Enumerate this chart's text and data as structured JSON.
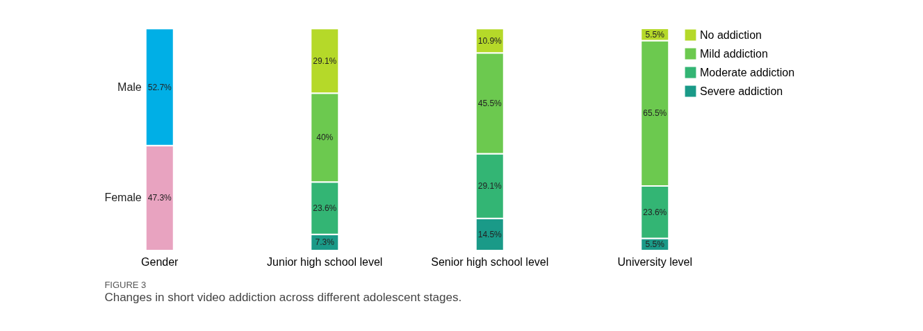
{
  "chart_data": {
    "type": "other",
    "categories": [
      "Gender",
      "Junior high school level",
      "Senior high school level",
      "University level"
    ],
    "series": [
      {
        "name": "Female",
        "color": "#e8a3c0",
        "values": [
          47.3,
          null,
          null,
          null
        ],
        "value_labels": [
          "47.3%",
          null,
          null,
          null
        ]
      },
      {
        "name": "Male",
        "color": "#00afe6",
        "values": [
          52.7,
          null,
          null,
          null
        ],
        "value_labels": [
          "52.7%",
          null,
          null,
          null
        ]
      },
      {
        "name": "Severe addiction",
        "color": "#1a9a88",
        "values": [
          null,
          7.3,
          14.5,
          5.5
        ],
        "value_labels": [
          null,
          "7.3%",
          "14.5%",
          "5.5%"
        ]
      },
      {
        "name": "Moderate addiction",
        "color": "#33b574",
        "values": [
          null,
          23.6,
          29.1,
          23.6
        ],
        "value_labels": [
          null,
          "23.6%",
          "29.1%",
          "23.6%"
        ]
      },
      {
        "name": "Mild addiction",
        "color": "#6cc94f",
        "values": [
          null,
          40,
          45.5,
          65.5
        ],
        "value_labels": [
          null,
          "40%",
          "45.5%",
          "65.5%"
        ]
      },
      {
        "name": "No addiction",
        "color": "#b5d929",
        "values": [
          null,
          29.1,
          10.9,
          5.5
        ],
        "value_labels": [
          null,
          "29.1%",
          "10.9%",
          "5.5%"
        ]
      }
    ],
    "legend": "top right",
    "annotations": [
      "FIGURE 3",
      "Changes in short video addiction across different adolescent stages."
    ]
  }
}
